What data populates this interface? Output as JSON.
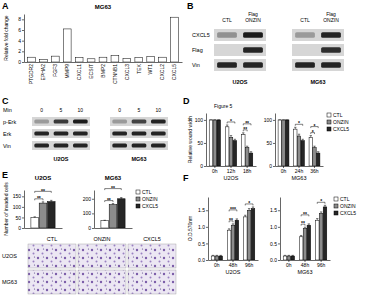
{
  "panel_labels": [
    "A",
    "B",
    "C",
    "D",
    "E",
    "F"
  ],
  "chart_data": [
    {
      "type": "bar",
      "title": "MG63",
      "y_label": "Relative fold change",
      "categories": [
        "PTGDR2",
        "EPHA2",
        "FGF3",
        "MMP9",
        "CXCL1",
        "ECSIT",
        "BMP2",
        "CTNNB1",
        "CXCL3",
        "TEK",
        "WT1",
        "CXCL2",
        "CXCL5"
      ],
      "values": [
        0.9,
        0.5,
        1.1,
        6.2,
        0.8,
        0.6,
        0.9,
        1.2,
        0.7,
        0.8,
        1.0,
        0.9,
        8.4
      ],
      "color": "#ffffff",
      "ylim": [
        0,
        9
      ],
      "yticks": [
        0,
        2,
        4,
        6,
        8
      ]
    },
    {
      "type": "bar",
      "subtitle": "Figure 5",
      "y_label": "Relative wound width",
      "x_label": "U2OS",
      "categories": [
        "0h",
        "12h",
        "18h"
      ],
      "series": [
        {
          "color": "#ffffff",
          "values": [
            100,
            85,
            68
          ],
          "errors": [
            0,
            4,
            4
          ]
        },
        {
          "color": "#8c8c8c",
          "values": [
            100,
            62,
            40
          ],
          "errors": [
            0,
            4,
            3
          ]
        },
        {
          "color": "#262626",
          "values": [
            100,
            55,
            28
          ],
          "errors": [
            0,
            3,
            3
          ]
        }
      ],
      "ylim": [
        0,
        115
      ],
      "yticks": [
        0,
        50,
        100
      ],
      "annotations": [
        {
          "text": "*",
          "category": 1,
          "from": 0,
          "to": 2
        },
        {
          "text": "**",
          "category": 2,
          "from": 0,
          "to": 1
        },
        {
          "text": "**",
          "category": 2,
          "from": 0,
          "to": 2
        }
      ]
    },
    {
      "type": "bar",
      "x_label": "MG63",
      "categories": [
        "0h",
        "24h",
        "36h"
      ],
      "series": [
        {
          "name": "CTL",
          "color": "#ffffff",
          "values": [
            100,
            80,
            62
          ],
          "errors": [
            0,
            4,
            4
          ]
        },
        {
          "name": "ONZIN",
          "color": "#8c8c8c",
          "values": [
            100,
            65,
            40
          ],
          "errors": [
            0,
            4,
            3
          ]
        },
        {
          "name": "CXCL5",
          "color": "#262626",
          "values": [
            100,
            55,
            28
          ],
          "errors": [
            0,
            3,
            3
          ]
        }
      ],
      "ylim": [
        0,
        115
      ],
      "yticks": [
        0,
        50,
        100
      ],
      "legend": "upper right",
      "annotations": [
        {
          "text": "*",
          "category": 1,
          "from": 0,
          "to": 2
        },
        {
          "text": "*",
          "category": 2,
          "from": 0,
          "to": 1
        },
        {
          "text": "*",
          "category": 2,
          "from": 0,
          "to": 2
        }
      ]
    },
    {
      "type": "bar",
      "title": "U2OS",
      "y_label": "Number of invaded cells",
      "categories": [
        null
      ],
      "series": [
        {
          "color": "#ffffff",
          "values": [
            50
          ],
          "errors": [
            3
          ]
        },
        {
          "color": "#8c8c8c",
          "values": [
            118
          ],
          "errors": [
            6
          ]
        },
        {
          "color": "#262626",
          "values": [
            125
          ],
          "errors": [
            6
          ]
        }
      ],
      "ylim": [
        0,
        180
      ],
      "yticks": [
        0,
        50,
        100,
        150
      ],
      "tick_labels": "y",
      "annotations": [
        {
          "text": "**",
          "category": 0,
          "from": 0,
          "to": 1
        },
        {
          "text": "**",
          "category": 0,
          "from": 0,
          "to": 2
        }
      ]
    },
    {
      "type": "bar",
      "title": "MG63",
      "categories": [
        null
      ],
      "series": [
        {
          "name": "CTL",
          "color": "#ffffff",
          "values": [
            50
          ],
          "errors": [
            3
          ]
        },
        {
          "name": "ONZIN",
          "color": "#8c8c8c",
          "values": [
            160
          ],
          "errors": [
            7
          ]
        },
        {
          "name": "CXCL5",
          "color": "#262626",
          "values": [
            200
          ],
          "errors": [
            8
          ]
        }
      ],
      "ylim": [
        0,
        260
      ],
      "yticks": [
        0,
        100,
        200
      ],
      "tick_labels": "y",
      "legend": "upper right",
      "annotations": [
        {
          "text": "**",
          "category": 0,
          "from": 0,
          "to": 1
        },
        {
          "text": "**",
          "category": 0,
          "from": 0,
          "to": 2
        }
      ]
    },
    {
      "type": "bar",
      "y_label": "O.D.570nm",
      "x_label": "U2OS",
      "categories": [
        "0h",
        "48h",
        "96h"
      ],
      "series": [
        {
          "color": "#ffffff",
          "values": [
            0.12,
            0.9,
            1.3
          ],
          "errors": [
            0.02,
            0.04,
            0.05
          ]
        },
        {
          "color": "#8c8c8c",
          "values": [
            0.12,
            1.05,
            1.5
          ],
          "errors": [
            0.02,
            0.04,
            0.05
          ]
        },
        {
          "color": "#262626",
          "values": [
            0.12,
            1.2,
            1.55
          ],
          "errors": [
            0.02,
            0.04,
            0.05
          ]
        }
      ],
      "ylim": [
        0,
        1.9
      ],
      "yticks": [
        {
          "value": 0,
          "label": "0.0"
        },
        0.5,
        {
          "value": 1,
          "label": "1.0"
        },
        1.5
      ],
      "annotations": [
        {
          "text": "**",
          "category": 1,
          "from": 0,
          "to": 1
        },
        {
          "text": "***",
          "category": 1,
          "from": 0,
          "to": 2
        },
        {
          "text": "*",
          "category": 2,
          "from": 0,
          "to": 2
        }
      ]
    },
    {
      "type": "bar",
      "x_label": "MG63",
      "categories": [
        "0h",
        "48h",
        "96h"
      ],
      "series": [
        {
          "name": "CTL",
          "color": "#ffffff",
          "values": [
            0.12,
            0.7,
            1.2
          ],
          "errors": [
            0.02,
            0.04,
            0.05
          ]
        },
        {
          "name": "ONZIN",
          "color": "#8c8c8c",
          "values": [
            0.12,
            0.95,
            1.4
          ],
          "errors": [
            0.02,
            0.04,
            0.05
          ]
        },
        {
          "name": "CXCL5",
          "color": "#262626",
          "values": [
            0.12,
            1.05,
            1.6
          ],
          "errors": [
            0.02,
            0.04,
            0.05
          ]
        }
      ],
      "ylim": [
        0,
        1.9
      ],
      "yticks": [
        {
          "value": 0,
          "label": "0.0"
        },
        0.5,
        {
          "value": 1,
          "label": "1.0"
        },
        1.5
      ],
      "legend": "upper right",
      "annotations": [
        {
          "text": "**",
          "category": 1,
          "from": 0,
          "to": 1
        },
        {
          "text": "**",
          "category": 1,
          "from": 0,
          "to": 2
        },
        {
          "text": "*",
          "category": 2,
          "from": 0,
          "to": 2
        }
      ]
    }
  ],
  "blots": [
    {
      "row_labels": [
        "CXCL5",
        "Flag",
        "Vin"
      ],
      "column_labels": [
        [
          "CTL"
        ],
        [
          "Flag",
          "ONZIN"
        ]
      ],
      "cells": [
        {
          "name": "U2OS",
          "intensity": [
            [
              0.35,
              0.95
            ],
            [
              0,
              0.9
            ],
            [
              0.9,
              0.9
            ]
          ]
        },
        {
          "name": "MG63",
          "intensity": [
            [
              0.3,
              0.9
            ],
            [
              0,
              0.85
            ],
            [
              0.9,
              0.9
            ]
          ]
        }
      ]
    },
    {
      "header": "Min",
      "row_labels": [
        "p-Erk",
        "Erk",
        "Vin"
      ],
      "column_labels": [
        [
          "0"
        ],
        [
          "5"
        ],
        [
          "10"
        ]
      ],
      "cells": [
        {
          "name": "U2OS",
          "intensity": [
            [
              0.3,
              0.8,
              0.95
            ],
            [
              0.9,
              0.9,
              0.9
            ],
            [
              0.9,
              0.9,
              0.9
            ]
          ]
        },
        {
          "name": "MG63",
          "intensity": [
            [
              0.3,
              0.75,
              0.9
            ],
            [
              0.9,
              0.9,
              0.9
            ],
            [
              0.9,
              0.9,
              0.9
            ]
          ]
        }
      ]
    }
  ],
  "micrographs": {
    "column_labels": [
      "CTL",
      "ONZIN",
      "CXCL5"
    ],
    "row_labels": [
      "U2OS",
      "MG63"
    ]
  }
}
